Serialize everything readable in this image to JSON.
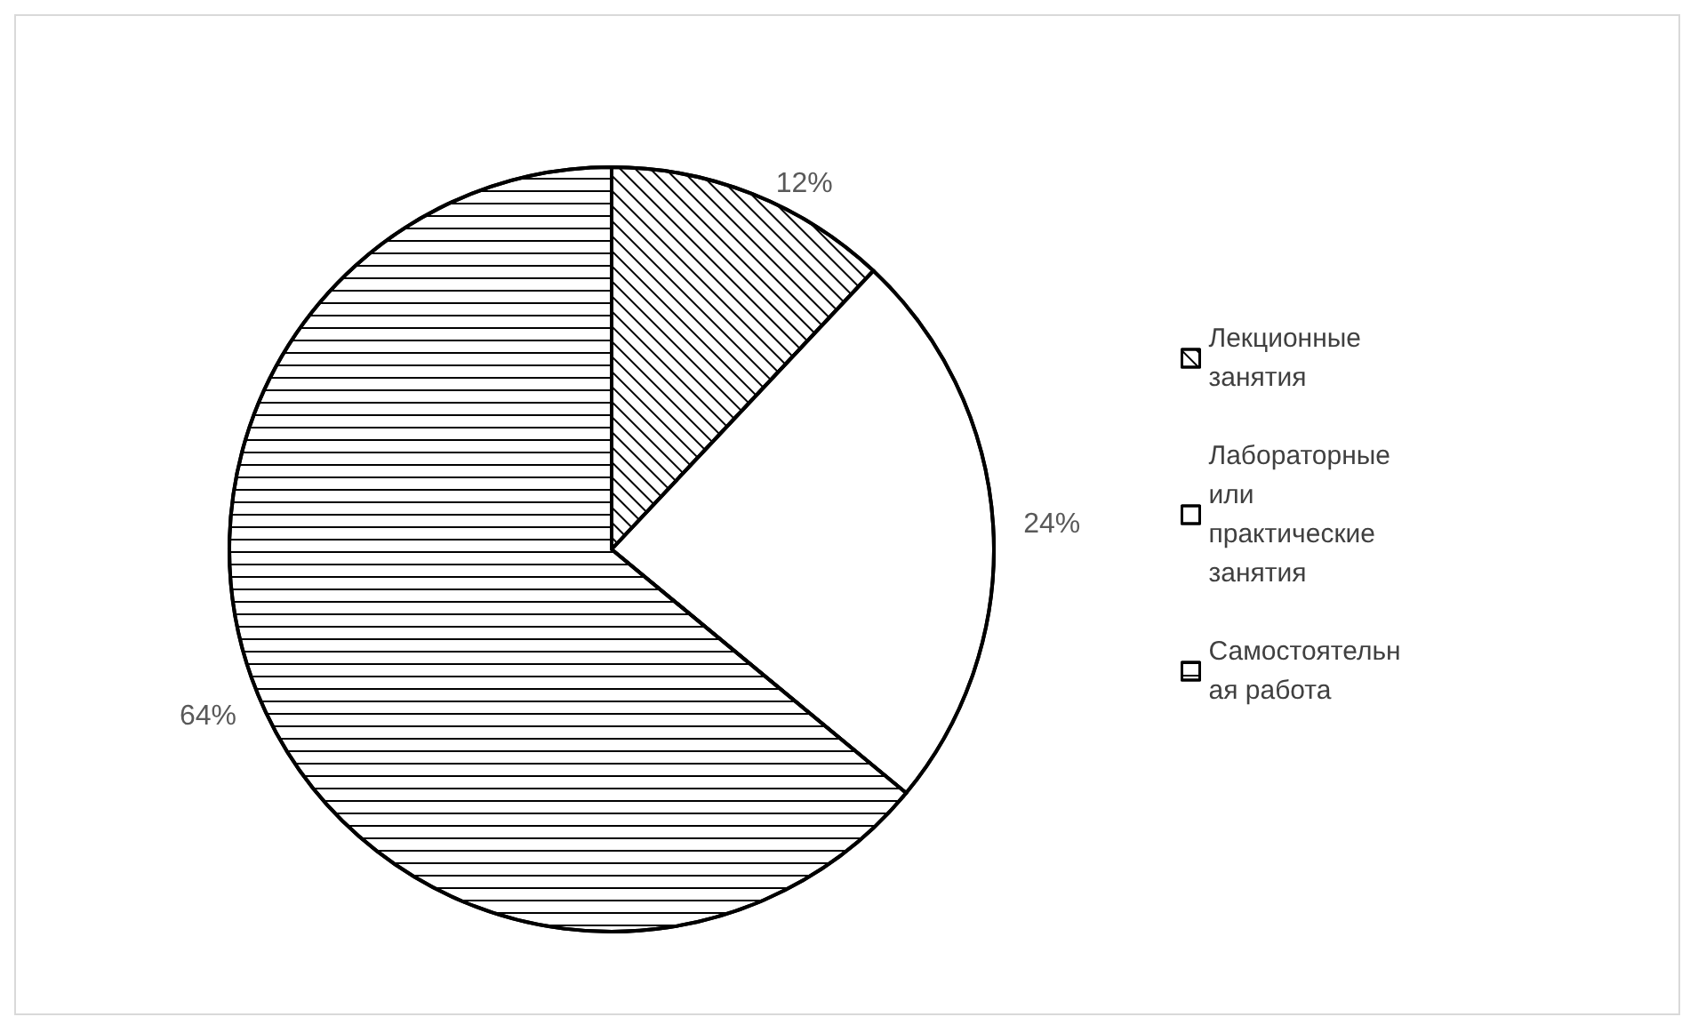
{
  "chart_data": {
    "type": "pie",
    "categories": [
      "Лекционные занятия",
      "Лабораторные  или практические занятия",
      "Самостоятельная работа"
    ],
    "values": [
      12,
      24,
      64
    ],
    "colors": [
      "#ffffff",
      "#ffffff",
      "#ffffff"
    ],
    "legend": "right",
    "value_labels": [
      "12%",
      "24%",
      "64%"
    ]
  }
}
